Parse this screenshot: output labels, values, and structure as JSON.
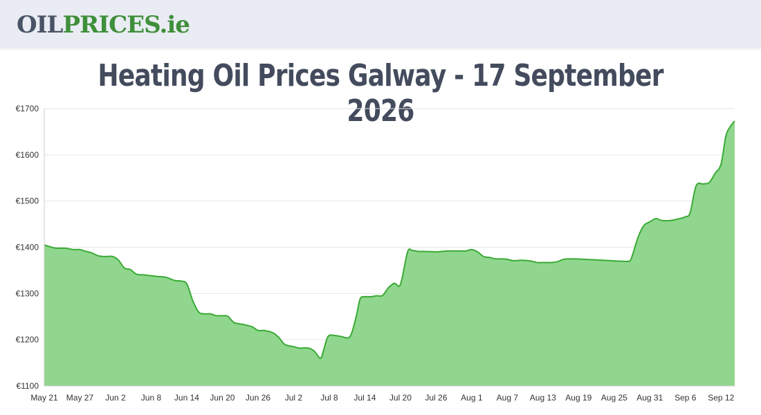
{
  "header": {
    "logo_part1": "OIL",
    "logo_part2": "PRICES",
    "logo_part3": ".ie"
  },
  "page_title": "Heating Oil Prices Galway - 17 September 2026",
  "colors": {
    "line": "#3aaa35",
    "fill": "#90d68e",
    "grid": "#e6e6e6",
    "logo_dark": "#4a5466",
    "logo_green": "#3f8f3a"
  },
  "chart_data": {
    "type": "area",
    "title": "",
    "xlabel": "",
    "ylabel": "",
    "ylim": [
      1100,
      1700
    ],
    "grid": true,
    "y_ticks": [
      "€1100",
      "€1200",
      "€1300",
      "€1400",
      "€1500",
      "€1600",
      "€1700"
    ],
    "y_tick_values": [
      1100,
      1200,
      1300,
      1400,
      1500,
      1600,
      1700
    ],
    "x_ticks": [
      "May 21",
      "May 27",
      "Jun 2",
      "Jun 8",
      "Jun 14",
      "Jun 20",
      "Jun 26",
      "Jul 2",
      "Jul 8",
      "Jul 14",
      "Jul 20",
      "Jul 26",
      "Aug 1",
      "Aug 7",
      "Aug 13",
      "Aug 19",
      "Aug 25",
      "Aug 31",
      "Sep 6",
      "Sep 12"
    ],
    "x_tick_days": [
      0,
      6,
      12,
      18,
      24,
      30,
      36,
      42,
      48,
      54,
      60,
      66,
      72,
      78,
      84,
      90,
      96,
      102,
      108,
      114
    ],
    "series": [
      {
        "values": [
          [
            0,
            1405
          ],
          [
            1,
            1401
          ],
          [
            2,
            1398
          ],
          [
            3.5,
            1398
          ],
          [
            5,
            1395
          ],
          [
            6,
            1395
          ],
          [
            7,
            1391
          ],
          [
            8,
            1388
          ],
          [
            9,
            1382
          ],
          [
            10,
            1380
          ],
          [
            11.5,
            1380
          ],
          [
            12.5,
            1372
          ],
          [
            13.5,
            1355
          ],
          [
            14.5,
            1352
          ],
          [
            15.5,
            1342
          ],
          [
            17,
            1340
          ],
          [
            19,
            1337
          ],
          [
            20.5,
            1335
          ],
          [
            22,
            1328
          ],
          [
            23,
            1327
          ],
          [
            24,
            1321
          ],
          [
            25,
            1285
          ],
          [
            26,
            1260
          ],
          [
            27,
            1256
          ],
          [
            28,
            1256
          ],
          [
            29,
            1252
          ],
          [
            30.5,
            1252
          ],
          [
            31,
            1250
          ],
          [
            32,
            1237
          ],
          [
            33.5,
            1233
          ],
          [
            35,
            1228
          ],
          [
            36,
            1220
          ],
          [
            37,
            1220
          ],
          [
            38.5,
            1215
          ],
          [
            39.5,
            1205
          ],
          [
            40.5,
            1190
          ],
          [
            42,
            1185
          ],
          [
            43,
            1182
          ],
          [
            44.5,
            1182
          ],
          [
            45.5,
            1175
          ],
          [
            46.5,
            1160
          ],
          [
            47,
            1175
          ],
          [
            47.8,
            1207
          ],
          [
            49,
            1209
          ],
          [
            50,
            1207
          ],
          [
            51.5,
            1207
          ],
          [
            52.5,
            1248
          ],
          [
            53.2,
            1288
          ],
          [
            54,
            1293
          ],
          [
            55,
            1293
          ],
          [
            56,
            1295
          ],
          [
            57,
            1296
          ],
          [
            58,
            1313
          ],
          [
            59,
            1322
          ],
          [
            60,
            1320
          ],
          [
            61.2,
            1390
          ],
          [
            62,
            1393
          ],
          [
            63,
            1391
          ],
          [
            64,
            1391
          ],
          [
            66,
            1390
          ],
          [
            67,
            1391
          ],
          [
            68,
            1392
          ],
          [
            70,
            1392
          ],
          [
            71,
            1392
          ],
          [
            72,
            1395
          ],
          [
            73,
            1390
          ],
          [
            74,
            1380
          ],
          [
            75,
            1378
          ],
          [
            76,
            1375
          ],
          [
            77,
            1375
          ],
          [
            78,
            1374
          ],
          [
            79,
            1371
          ],
          [
            80.5,
            1372
          ],
          [
            82,
            1370
          ],
          [
            83,
            1367
          ],
          [
            84,
            1367
          ],
          [
            85.5,
            1367
          ],
          [
            86.5,
            1369
          ],
          [
            87.5,
            1374
          ],
          [
            89,
            1375
          ],
          [
            91,
            1374
          ],
          [
            92.5,
            1373
          ],
          [
            94,
            1372
          ],
          [
            95.5,
            1371
          ],
          [
            97,
            1370
          ],
          [
            98.5,
            1370
          ],
          [
            99,
            1380
          ],
          [
            100,
            1421
          ],
          [
            101,
            1447
          ],
          [
            102,
            1455
          ],
          [
            103,
            1462
          ],
          [
            104,
            1458
          ],
          [
            105.5,
            1458
          ],
          [
            107,
            1462
          ],
          [
            108,
            1466
          ],
          [
            108.8,
            1475
          ],
          [
            109.8,
            1533
          ],
          [
            111,
            1537
          ],
          [
            112,
            1540
          ],
          [
            113,
            1560
          ],
          [
            114,
            1580
          ],
          [
            114.8,
            1640
          ],
          [
            115.5,
            1660
          ],
          [
            116.3,
            1673
          ]
        ]
      }
    ],
    "x_range_days": [
      0,
      116.3
    ]
  }
}
